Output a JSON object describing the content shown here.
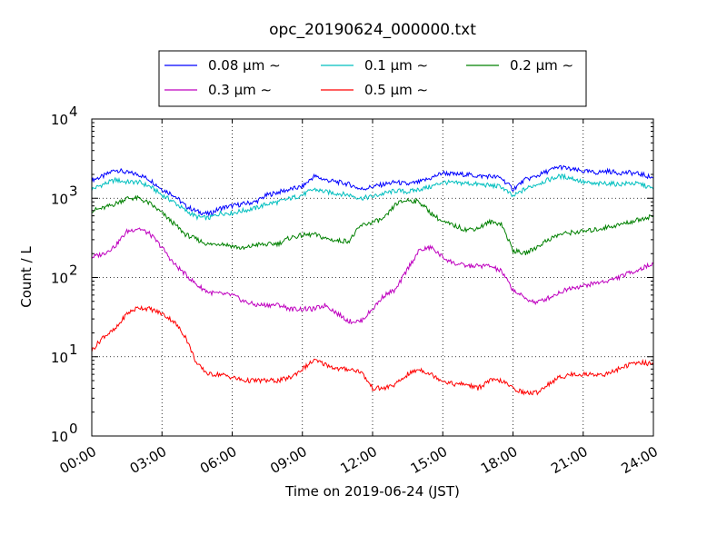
{
  "chart_data": {
    "type": "line",
    "title": "opc_20190624_000000.txt",
    "xlabel": "Time on 2019-06-24 (JST)",
    "ylabel": "Count / L",
    "xlim": [
      0,
      24
    ],
    "ylim": [
      1,
      10000
    ],
    "yscale": "log",
    "grid": true,
    "legend_position": "top-center",
    "x_tick_labels": [
      "00:00",
      "03:00",
      "06:00",
      "09:00",
      "12:00",
      "15:00",
      "18:00",
      "21:00",
      "24:00"
    ],
    "y_tick_labels": [
      {
        "base": "10",
        "exp": "0"
      },
      {
        "base": "10",
        "exp": "1"
      },
      {
        "base": "10",
        "exp": "2"
      },
      {
        "base": "10",
        "exp": "3"
      },
      {
        "base": "10",
        "exp": "4"
      }
    ],
    "x": [
      0,
      0.5,
      1,
      1.5,
      2,
      2.5,
      3,
      3.5,
      4,
      4.5,
      5,
      5.5,
      6,
      6.5,
      7,
      7.5,
      8,
      8.5,
      9,
      9.5,
      10,
      10.5,
      11,
      11.5,
      12,
      12.5,
      13,
      13.5,
      14,
      14.5,
      15,
      15.5,
      16,
      16.5,
      17,
      17.5,
      18,
      18.5,
      19,
      19.5,
      20,
      20.5,
      21,
      21.5,
      22,
      22.5,
      23,
      23.5,
      24
    ],
    "series": [
      {
        "name": "0.08 μm ∼",
        "color": "#0000ff",
        "values": [
          1700,
          1900,
          2300,
          2100,
          2000,
          1700,
          1300,
          1100,
          800,
          680,
          630,
          750,
          800,
          850,
          900,
          1100,
          1200,
          1300,
          1400,
          1900,
          1700,
          1600,
          1500,
          1300,
          1400,
          1500,
          1600,
          1500,
          1600,
          1800,
          2100,
          2000,
          2000,
          1900,
          1900,
          1800,
          1300,
          1700,
          1900,
          2200,
          2500,
          2300,
          2200,
          2100,
          2200,
          2100,
          2100,
          2000,
          1800
        ]
      },
      {
        "name": "0.1 μm ∼",
        "color": "#00bfbf",
        "values": [
          1300,
          1500,
          1700,
          1600,
          1600,
          1400,
          1100,
          900,
          700,
          580,
          560,
          650,
          650,
          700,
          750,
          850,
          900,
          1000,
          1100,
          1300,
          1200,
          1150,
          1100,
          1000,
          1050,
          1150,
          1250,
          1200,
          1300,
          1400,
          1600,
          1550,
          1550,
          1500,
          1450,
          1400,
          1050,
          1300,
          1500,
          1700,
          1900,
          1800,
          1600,
          1500,
          1550,
          1500,
          1550,
          1500,
          1300
        ]
      },
      {
        "name": "0.2 μm ∼",
        "color": "#008000",
        "values": [
          700,
          750,
          850,
          1000,
          1000,
          850,
          650,
          480,
          350,
          300,
          260,
          270,
          250,
          230,
          260,
          260,
          270,
          320,
          340,
          350,
          310,
          290,
          290,
          450,
          500,
          550,
          850,
          950,
          900,
          650,
          500,
          450,
          400,
          420,
          500,
          480,
          220,
          200,
          240,
          300,
          350,
          370,
          380,
          400,
          430,
          460,
          500,
          550,
          600
        ]
      },
      {
        "name": "0.3 μm ∼",
        "color": "#bf00bf",
        "values": [
          180,
          200,
          250,
          380,
          420,
          350,
          240,
          150,
          110,
          80,
          65,
          62,
          60,
          50,
          45,
          45,
          45,
          40,
          40,
          40,
          45,
          35,
          28,
          28,
          40,
          60,
          70,
          130,
          220,
          240,
          180,
          150,
          140,
          140,
          140,
          120,
          70,
          55,
          48,
          55,
          65,
          75,
          78,
          85,
          90,
          100,
          115,
          130,
          150
        ]
      },
      {
        "name": "0.5 μm ∼",
        "color": "#ff0000",
        "values": [
          12,
          18,
          22,
          35,
          42,
          40,
          35,
          28,
          18,
          8,
          6,
          6,
          5.5,
          5,
          5,
          5,
          5,
          5.5,
          7,
          9,
          8,
          7,
          7,
          6.5,
          4,
          4,
          4.5,
          6,
          7,
          6,
          5,
          4.5,
          4.5,
          4,
          5,
          5,
          4,
          3.5,
          3.5,
          4.5,
          5.5,
          6,
          6,
          6,
          6,
          7,
          8,
          8.5,
          8
        ]
      }
    ]
  }
}
